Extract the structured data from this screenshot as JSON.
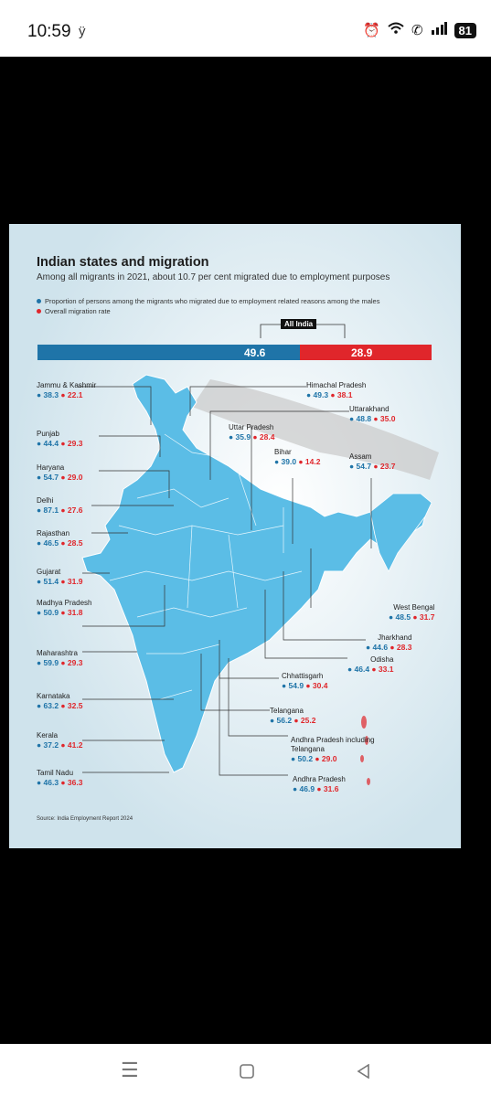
{
  "status_bar": {
    "time": "10:59",
    "carrier": "ÿ",
    "battery": "81"
  },
  "poster": {
    "title": "Indian states and migration",
    "subtitle": "Among all migrants in 2021, about 10.7 per cent migrated due to employment purposes",
    "legend": {
      "blue": "Proportion of persons among the migrants who migrated due to employment related reasons among the males",
      "red": "Overall migration rate"
    },
    "all_india": {
      "label": "All India",
      "blue_value": "49.6",
      "red_value": "28.9"
    },
    "states": [
      {
        "name": "Jammu & Kashmir",
        "blue": "38.3",
        "red": "22.1"
      },
      {
        "name": "Himachal Pradesh",
        "blue": "49.3",
        "red": "38.1"
      },
      {
        "name": "Uttarakhand",
        "blue": "48.8",
        "red": "35.0"
      },
      {
        "name": "Punjab",
        "blue": "44.4",
        "red": "29.3"
      },
      {
        "name": "Uttar Pradesh",
        "blue": "35.9",
        "red": "28.4"
      },
      {
        "name": "Haryana",
        "blue": "54.7",
        "red": "29.0"
      },
      {
        "name": "Bihar",
        "blue": "39.0",
        "red": "14.2"
      },
      {
        "name": "Assam",
        "blue": "54.7",
        "red": "23.7"
      },
      {
        "name": "Delhi",
        "blue": "87.1",
        "red": "27.6"
      },
      {
        "name": "Rajasthan",
        "blue": "46.5",
        "red": "28.5"
      },
      {
        "name": "Gujarat",
        "blue": "51.4",
        "red": "31.9"
      },
      {
        "name": "West Bengal",
        "blue": "48.5",
        "red": "31.7"
      },
      {
        "name": "Madhya Pradesh",
        "blue": "50.9",
        "red": "31.8"
      },
      {
        "name": "Jharkhand",
        "blue": "44.6",
        "red": "28.3"
      },
      {
        "name": "Maharashtra",
        "blue": "59.9",
        "red": "29.3"
      },
      {
        "name": "Odisha",
        "blue": "46.4",
        "red": "33.1"
      },
      {
        "name": "Chhattisgarh",
        "blue": "54.9",
        "red": "30.4"
      },
      {
        "name": "Karnataka",
        "blue": "63.2",
        "red": "32.5"
      },
      {
        "name": "Telangana",
        "blue": "56.2",
        "red": "25.2"
      },
      {
        "name": "Kerala",
        "blue": "37.2",
        "red": "41.2"
      },
      {
        "name": "Andhra Pradesh including Telangana",
        "blue": "50.2",
        "red": "29.0"
      },
      {
        "name": "Tamil Nadu",
        "blue": "46.3",
        "red": "36.3"
      },
      {
        "name": "Andhra Pradesh",
        "blue": "46.9",
        "red": "31.6"
      }
    ],
    "source": "Source: India Employment Report 2024"
  },
  "colors": {
    "blue": "#1f74a8",
    "red": "#e0262b",
    "map": "#5bbde6",
    "background": "#d9eaf2"
  },
  "nav_bar": {
    "icons": [
      "menu-icon",
      "home-square-icon",
      "back-triangle-icon"
    ]
  }
}
